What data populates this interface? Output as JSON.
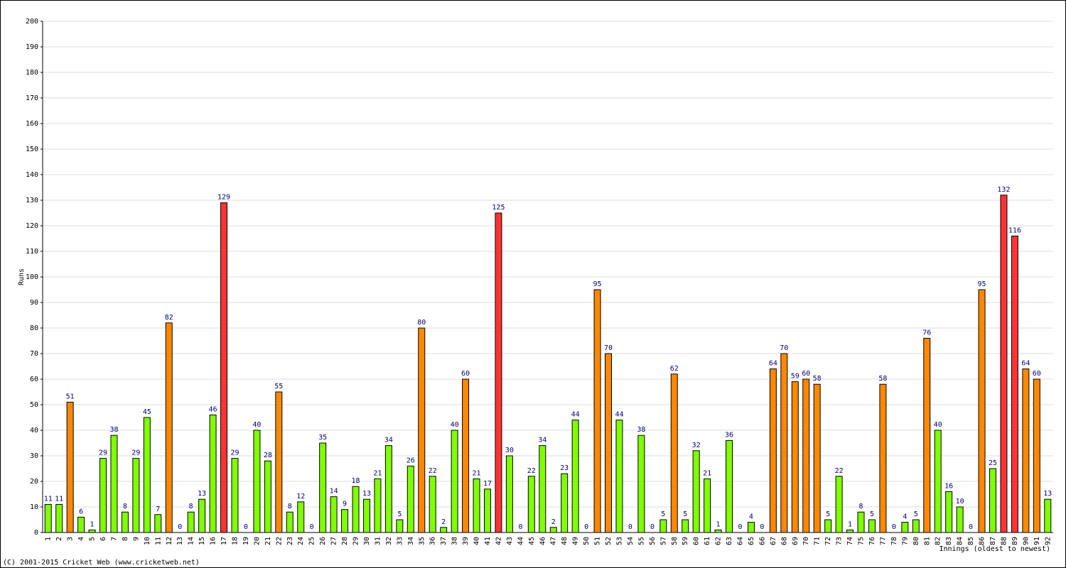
{
  "chart_data": {
    "type": "bar",
    "x_label": "Innings (oldest to newest)",
    "y_label": "Runs",
    "categories": [
      "1",
      "2",
      "3",
      "4",
      "5",
      "6",
      "7",
      "8",
      "9",
      "10",
      "11",
      "12",
      "13",
      "14",
      "15",
      "16",
      "17",
      "18",
      "19",
      "20",
      "21",
      "22",
      "23",
      "24",
      "25",
      "26",
      "27",
      "28",
      "29",
      "30",
      "31",
      "32",
      "33",
      "34",
      "35",
      "36",
      "37",
      "38",
      "39",
      "40",
      "41",
      "42",
      "43",
      "44",
      "45",
      "46",
      "47",
      "48",
      "49",
      "50",
      "51",
      "52",
      "53",
      "54",
      "55",
      "56",
      "57",
      "58",
      "59",
      "60",
      "61",
      "62",
      "63",
      "64",
      "65",
      "66",
      "67",
      "68",
      "69",
      "70",
      "71",
      "72",
      "73",
      "74",
      "75",
      "76",
      "77",
      "78",
      "79",
      "80",
      "81",
      "82",
      "83",
      "84",
      "85",
      "86",
      "87",
      "88",
      "89",
      "90",
      "91",
      "92"
    ],
    "values": [
      11,
      11,
      51,
      6,
      1,
      29,
      38,
      8,
      29,
      45,
      7,
      82,
      0,
      8,
      13,
      46,
      129,
      29,
      0,
      40,
      28,
      55,
      8,
      12,
      0,
      35,
      14,
      9,
      18,
      13,
      21,
      34,
      5,
      26,
      80,
      22,
      2,
      40,
      60,
      21,
      17,
      125,
      30,
      0,
      22,
      34,
      2,
      23,
      44,
      0,
      95,
      70,
      44,
      0,
      38,
      0,
      5,
      62,
      5,
      32,
      21,
      1,
      36,
      0,
      4,
      0,
      64,
      70,
      59,
      60,
      58,
      5,
      22,
      1,
      8,
      5,
      58,
      0,
      4,
      5,
      76,
      40,
      16,
      10,
      0,
      95,
      25,
      132,
      116,
      64,
      60,
      13
    ],
    "colors": [
      "#80ff00",
      "#80ff00",
      "#ff8800",
      "#80ff00",
      "#80ff00",
      "#80ff00",
      "#80ff00",
      "#80ff00",
      "#80ff00",
      "#80ff00",
      "#80ff00",
      "#ff8800",
      "#80ff00",
      "#80ff00",
      "#80ff00",
      "#80ff00",
      "#ff3333",
      "#80ff00",
      "#80ff00",
      "#80ff00",
      "#80ff00",
      "#ff8800",
      "#80ff00",
      "#80ff00",
      "#80ff00",
      "#80ff00",
      "#80ff00",
      "#80ff00",
      "#80ff00",
      "#80ff00",
      "#80ff00",
      "#80ff00",
      "#80ff00",
      "#80ff00",
      "#ff8800",
      "#80ff00",
      "#80ff00",
      "#80ff00",
      "#ff8800",
      "#80ff00",
      "#80ff00",
      "#ff3333",
      "#80ff00",
      "#80ff00",
      "#80ff00",
      "#80ff00",
      "#80ff00",
      "#80ff00",
      "#80ff00",
      "#80ff00",
      "#ff8800",
      "#ff8800",
      "#80ff00",
      "#80ff00",
      "#80ff00",
      "#80ff00",
      "#80ff00",
      "#ff8800",
      "#80ff00",
      "#80ff00",
      "#80ff00",
      "#80ff00",
      "#80ff00",
      "#80ff00",
      "#80ff00",
      "#80ff00",
      "#ff8800",
      "#ff8800",
      "#ff8800",
      "#ff8800",
      "#ff8800",
      "#80ff00",
      "#80ff00",
      "#80ff00",
      "#80ff00",
      "#80ff00",
      "#ff8800",
      "#80ff00",
      "#80ff00",
      "#80ff00",
      "#ff8800",
      "#80ff00",
      "#80ff00",
      "#80ff00",
      "#80ff00",
      "#ff8800",
      "#80ff00",
      "#ff3333",
      "#ff3333",
      "#ff8800",
      "#ff8800",
      "#80ff00"
    ],
    "ylim": [
      0,
      200
    ],
    "yticks": [
      0,
      10,
      20,
      30,
      40,
      50,
      60,
      70,
      80,
      90,
      100,
      110,
      120,
      130,
      140,
      150,
      160,
      170,
      180,
      190,
      200
    ],
    "grid": true
  },
  "footer": "(C) 2001-2015 Cricket Web (www.cricketweb.net)"
}
